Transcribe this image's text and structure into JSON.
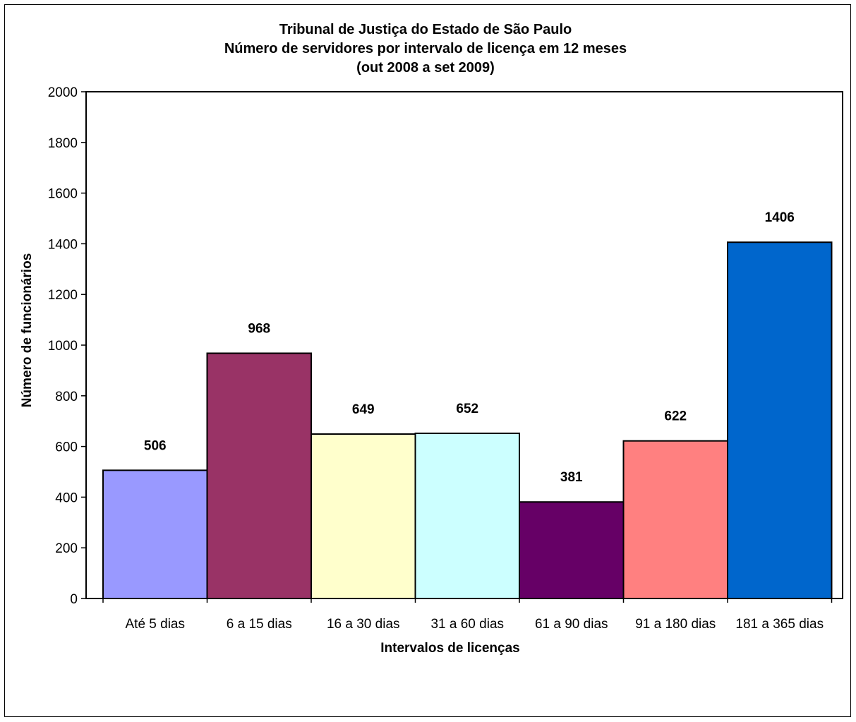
{
  "chart_data": {
    "type": "bar",
    "title": [
      "Tribunal de Justiça do Estado de São Paulo",
      "Número de servidores por intervalo de licença em 12 meses",
      "(out 2008 a set 2009)"
    ],
    "xlabel": "Intervalos de licenças",
    "ylabel": "Número de funcionários",
    "categories": [
      "Até 5 dias",
      "6 a 15 dias",
      "16 a 30 dias",
      "31 a 60 dias",
      "61 a 90 dias",
      "91 a 180 dias",
      "181 a 365 dias"
    ],
    "values": [
      506,
      968,
      649,
      652,
      381,
      622,
      1406
    ],
    "data_labels": [
      "506",
      "968",
      "649",
      "652",
      "381",
      "622",
      "1406"
    ],
    "colors": [
      "#9999FF",
      "#993366",
      "#FFFFCC",
      "#CCFFFF",
      "#660066",
      "#FF8080",
      "#0066CC"
    ],
    "ylim": [
      0,
      2000
    ],
    "yticks": [
      0,
      200,
      400,
      600,
      800,
      1000,
      1200,
      1400,
      1600,
      1800,
      2000
    ],
    "grid": false,
    "legend": "none"
  }
}
